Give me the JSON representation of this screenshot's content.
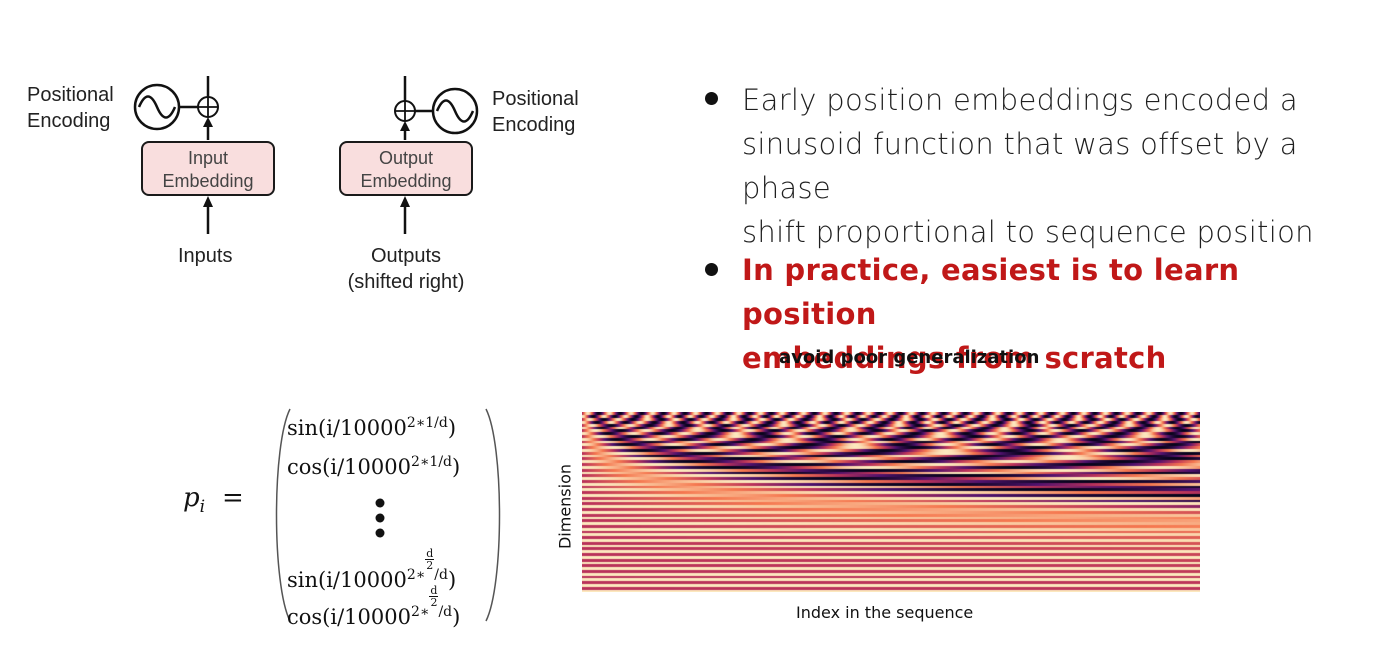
{
  "diagram": {
    "left_pe_label": [
      "Positional",
      "Encoding"
    ],
    "right_pe_label": [
      "Positional",
      "Encoding"
    ],
    "input_box": [
      "Input",
      "Embedding"
    ],
    "output_box": [
      "Output",
      "Embedding"
    ],
    "inputs_label": "Inputs",
    "outputs_label": [
      "Outputs",
      "(shifted right)"
    ]
  },
  "bullets": {
    "first": [
      "Early position embeddings encoded a",
      "sinusoid function that was offset by a phase",
      "shift proportional to sequence position"
    ],
    "second": [
      "In practice, easiest is to learn position",
      "embeddings from scratch"
    ],
    "note": "avoid poor generalization"
  },
  "formula": {
    "lhs": "p",
    "lhs_sub": "i",
    "equals": "=",
    "row1": "sin(i/10000",
    "row1_exp": "2∗1/d",
    "row2": "cos(i/10000",
    "row2_exp": "2∗1/d",
    "row3": "sin(i/10000",
    "row4": "cos(i/10000",
    "exp_prefix": "2∗",
    "frac_num": "d",
    "frac_den": "2",
    "exp_suffix": "/d",
    "close": ")"
  },
  "heatmap": {
    "ylabel": "Dimension",
    "xlabel": "Index in the sequence"
  },
  "colors": {
    "accent_red": "#c01818",
    "box_fill": "#f9dede"
  }
}
